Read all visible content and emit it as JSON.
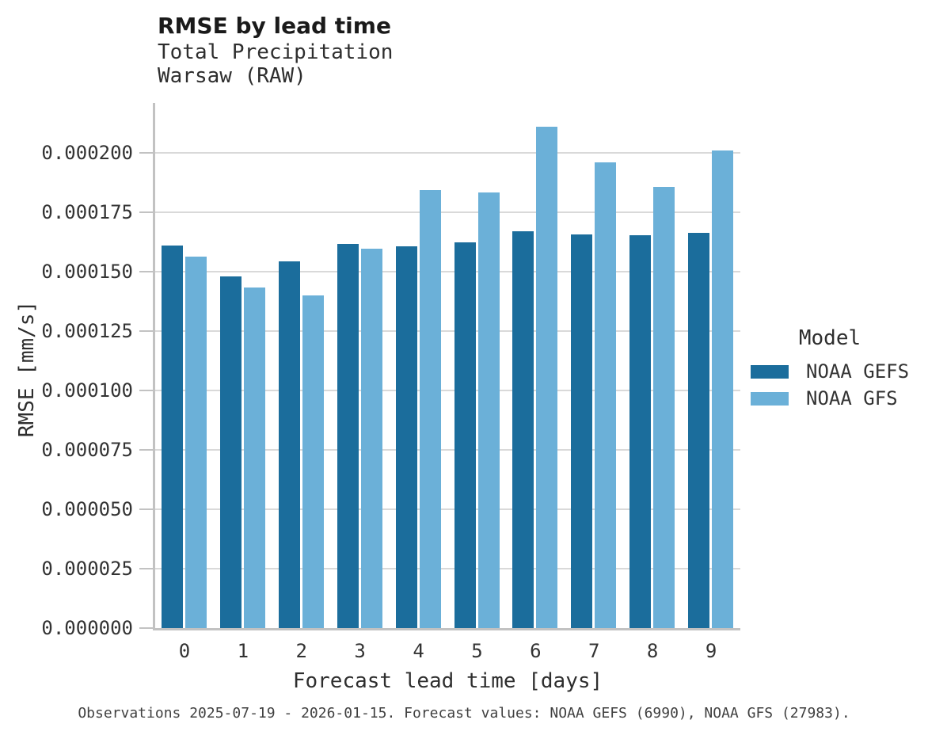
{
  "figure": {
    "title": "RMSE by lead time",
    "subtitle_line1": "Total Precipitation",
    "subtitle_line2": "Warsaw (RAW)",
    "caption": "Observations 2025-07-19 - 2026-01-15. Forecast values: NOAA GEFS (6990), NOAA GFS (27983)."
  },
  "chart_data": {
    "type": "bar",
    "bar_layout": "grouped",
    "title": "RMSE by lead time",
    "subtitle": [
      "Total Precipitation",
      "Warsaw (RAW)"
    ],
    "xlabel": "Forecast lead time [days]",
    "ylabel": "RMSE [mm/s]",
    "categories": [
      "0",
      "1",
      "2",
      "3",
      "4",
      "5",
      "6",
      "7",
      "8",
      "9"
    ],
    "series": [
      {
        "name": "NOAA GEFS",
        "color": "#1b6d9c",
        "values": [
          0.000161,
          0.000148,
          0.0001545,
          0.0001617,
          0.0001607,
          0.0001625,
          0.000167,
          0.0001658,
          0.0001652,
          0.0001665
        ]
      },
      {
        "name": "NOAA GFS",
        "color": "#6bb0d8",
        "values": [
          0.0001565,
          0.0001435,
          0.00014,
          0.0001598,
          0.0001845,
          0.0001835,
          0.000211,
          0.000196,
          0.0001857,
          0.000201
        ]
      }
    ],
    "ylim": [
      0,
      0.000221
    ],
    "yticks": [
      0,
      2.5e-05,
      5e-05,
      7.5e-05,
      0.0001,
      0.000125,
      0.00015,
      0.000175,
      0.0002
    ],
    "ytick_labels": [
      "0.000000",
      "0.000025",
      "0.000050",
      "0.000075",
      "0.000100",
      "0.000125",
      "0.000150",
      "0.000175",
      "0.000200"
    ],
    "grid": true,
    "legend_title": "Model",
    "legend_position": "right",
    "axis_color": "#c2c2c2",
    "gridline_color": "#d9d9d9"
  },
  "legend": {
    "title": "Model",
    "items": [
      "NOAA GEFS",
      "NOAA GFS"
    ]
  }
}
